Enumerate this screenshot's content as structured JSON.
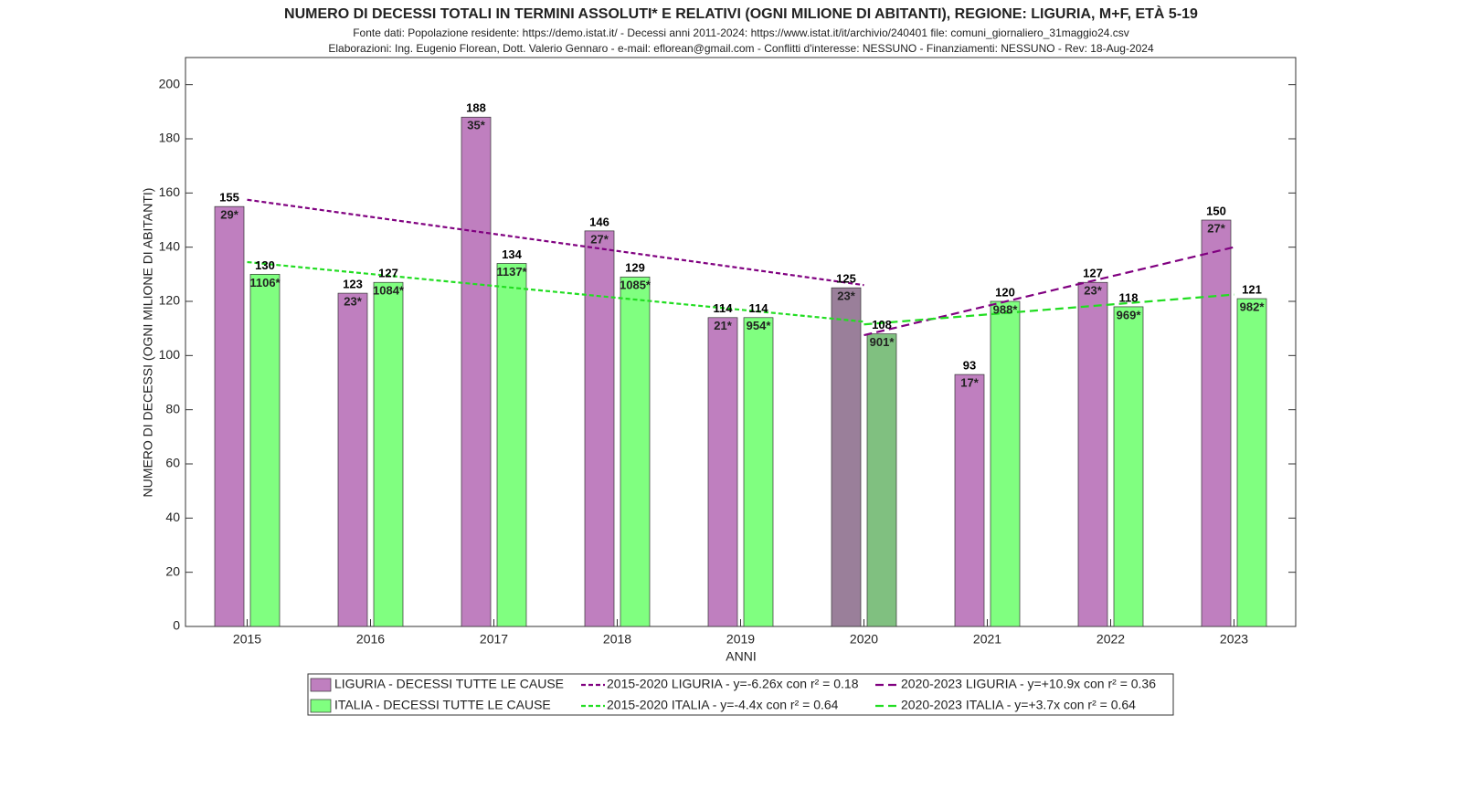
{
  "chart_data": {
    "type": "bar",
    "title": "NUMERO DI DECESSI TOTALI IN TERMINI ASSOLUTI* E RELATIVI (OGNI MILIONE DI ABITANTI), REGIONE: LIGURIA, M+F, ETÀ 5-19",
    "subtitle": "Fonte dati: Popolazione residente: https://demo.istat.it/ - Decessi anni 2011-2024: https://www.istat.it/it/archivio/240401 file: comuni_giornaliero_31maggio24.csv",
    "subtitle2": "Elaborazioni: Ing. Eugenio Florean, Dott. Valerio Gennaro - e-mail: eflorean@gmail.com - Conflitti d'interesse: NESSUNO - Finanziamenti: NESSUNO - Rev: 18-Aug-2024",
    "xlabel": "ANNI",
    "ylabel": "NUMERO DI DECESSI (OGNI MILIONE DI ABITANTI)",
    "categories": [
      "2015",
      "2016",
      "2017",
      "2018",
      "2019",
      "2020",
      "2021",
      "2022",
      "2023"
    ],
    "series": [
      {
        "name": "LIGURIA - DECESSI TUTTE LE CAUSE",
        "color": "#bf7fbf",
        "colors": [
          "#bf7fbf",
          "#bf7fbf",
          "#bf7fbf",
          "#bf7fbf",
          "#bf7fbf",
          "#9a7f9a",
          "#bf7fbf",
          "#bf7fbf",
          "#bf7fbf"
        ],
        "values": [
          155,
          123,
          188,
          146,
          114,
          125,
          93,
          127,
          150
        ],
        "relative_labels": [
          "29*",
          "23*",
          "35*",
          "27*",
          "21*",
          "23*",
          "17*",
          "23*",
          "27*"
        ]
      },
      {
        "name": "ITALIA - DECESSI TUTTE LE CAUSE",
        "color": "#80ff80",
        "colors": [
          "#80ff80",
          "#80ff80",
          "#80ff80",
          "#80ff80",
          "#80ff80",
          "#80c080",
          "#80ff80",
          "#80ff80",
          "#80ff80"
        ],
        "values": [
          130,
          127,
          134,
          129,
          114,
          108,
          120,
          118,
          121
        ],
        "relative_labels": [
          "1106*",
          "1084*",
          "1137*",
          "1085*",
          "954*",
          "901*",
          "988*",
          "969*",
          "982*"
        ]
      }
    ],
    "trend_lines": [
      {
        "name": "2015-2020 LIGURIA - y=-6.26x con r² = 0.18",
        "color": "#800080",
        "x": [
          2015,
          2020
        ],
        "values": [
          157.5,
          126
        ]
      },
      {
        "name": "2020-2023 LIGURIA - y=+10.9x con r² = 0.36",
        "color": "#800080",
        "x": [
          2020,
          2023
        ],
        "values": [
          107.5,
          140
        ]
      },
      {
        "name": "2015-2020 ITALIA - y=-4.4x con r² = 0.64",
        "color": "#22dd22",
        "x": [
          2015,
          2020
        ],
        "values": [
          134.5,
          112.5
        ]
      },
      {
        "name": "2020-2023 ITALIA - y=+3.7x con r² = 0.64",
        "color": "#22dd22",
        "x": [
          2020,
          2023
        ],
        "values": [
          111.5,
          122.5
        ]
      }
    ],
    "ylim": [
      0,
      210
    ],
    "yticks": [
      0,
      20,
      40,
      60,
      80,
      100,
      120,
      140,
      160,
      180,
      200
    ],
    "relative_label_color": "#0000dd"
  }
}
